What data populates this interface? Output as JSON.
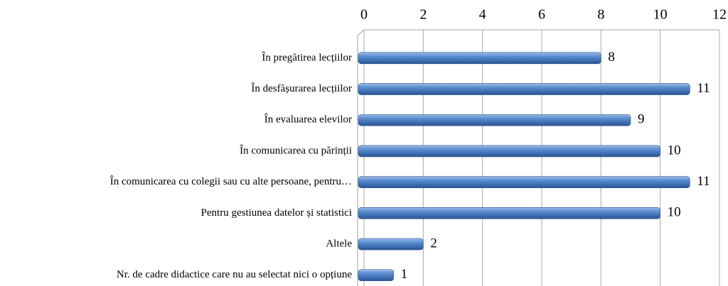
{
  "chart_data": {
    "type": "bar",
    "orientation": "horizontal",
    "categories": [
      "În pregătirea lecțiilor",
      "În desfășurarea lecțiilor",
      "În evaluarea elevilor",
      "În comunicarea cu părinții",
      "În comunicarea cu colegii sau cu alte persoane, pentru…",
      "Pentru gestiunea datelor și statistici",
      "Altele",
      "Nr.  de cadre didactice care nu au selectat nici o opțiune"
    ],
    "values": [
      8,
      11,
      9,
      10,
      11,
      10,
      2,
      1
    ],
    "color": "#4a7ebb",
    "xlim": [
      0,
      12
    ],
    "xticks": [
      0,
      2,
      4,
      6,
      8,
      10,
      12
    ],
    "grid": true
  }
}
